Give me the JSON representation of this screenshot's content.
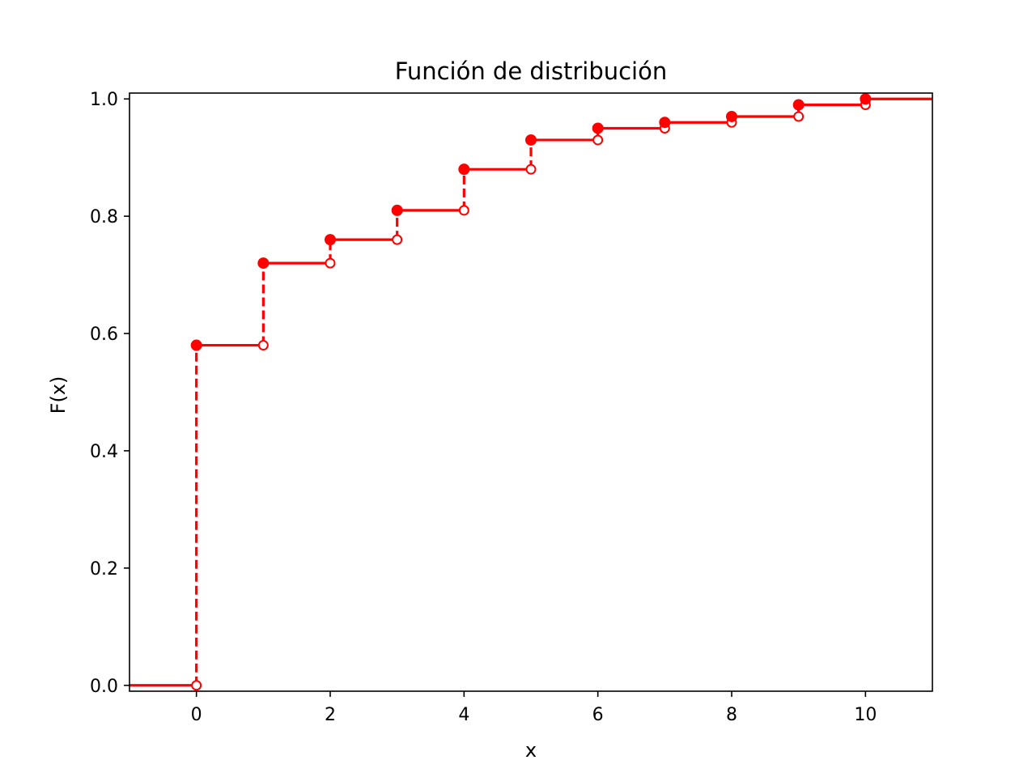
{
  "chart_data": {
    "type": "line",
    "title": "Función de distribución",
    "xlabel": "x",
    "ylabel": "F(x)",
    "xlim": [
      -1,
      11
    ],
    "ylim": [
      -0.01,
      1.01
    ],
    "xticks": [
      "0",
      "2",
      "4",
      "6",
      "8",
      "10"
    ],
    "yticks": [
      "0.0",
      "0.2",
      "0.4",
      "0.6",
      "0.8",
      "1.0"
    ],
    "grid": false,
    "step_style": "empirical-cdf: solid horizontal steps, dashed vertical jumps, filled dot at left-closed end, open circle at right-open end",
    "x": [
      0,
      1,
      2,
      3,
      4,
      5,
      6,
      7,
      8,
      9,
      10
    ],
    "values": [
      0.58,
      0.72,
      0.76,
      0.81,
      0.88,
      0.93,
      0.95,
      0.96,
      0.97,
      0.99,
      1.0
    ],
    "value_before_first": 0.0,
    "color": "#ff0000"
  }
}
